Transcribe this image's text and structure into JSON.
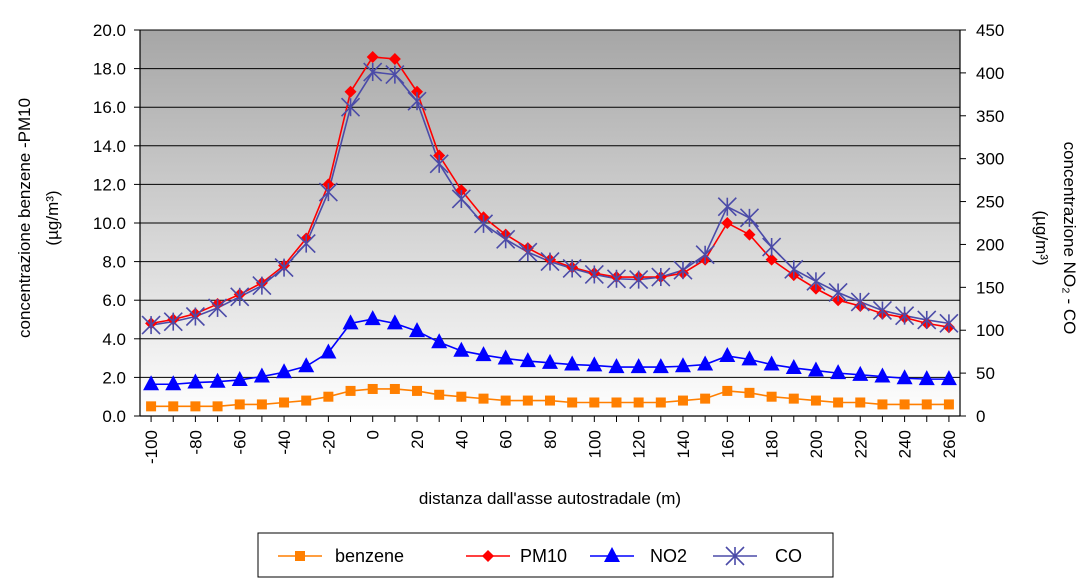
{
  "chart_data": {
    "type": "line",
    "x": [
      -100,
      -90,
      -80,
      -70,
      -60,
      -50,
      -40,
      -30,
      -20,
      -10,
      0,
      10,
      20,
      30,
      40,
      50,
      60,
      70,
      80,
      90,
      100,
      110,
      120,
      130,
      140,
      150,
      160,
      170,
      180,
      190,
      200,
      210,
      220,
      230,
      240,
      250,
      260
    ],
    "x_tick_labels": [
      "-100",
      "-80",
      "-60",
      "-40",
      "-20",
      "0",
      "20",
      "40",
      "60",
      "80",
      "100",
      "120",
      "140",
      "160",
      "180",
      "200",
      "220",
      "240",
      "260"
    ],
    "xlabel": "distanza dall'asse autostradale (m)",
    "ylabel_left": "concentrazione  benzene -PM10",
    "ylabel_left_unit": "(µg/m³)",
    "ylabel_right": "concentrazione NO₂ - CO",
    "ylabel_right_unit": "(µg/m³)",
    "y_left_ticks": [
      "0.0",
      "2.0",
      "4.0",
      "6.0",
      "8.0",
      "10.0",
      "12.0",
      "14.0",
      "16.0",
      "18.0",
      "20.0"
    ],
    "y_right_ticks": [
      "0",
      "50",
      "100",
      "150",
      "200",
      "250",
      "300",
      "350",
      "400",
      "450"
    ],
    "ylim_left": [
      0,
      20
    ],
    "ylim_right": [
      0,
      450
    ],
    "background": "vertical gradient grey (dark top to white bottom)",
    "grid": "horizontal",
    "legend_position": "bottom",
    "series": [
      {
        "name": "benzene",
        "axis": "left",
        "color": "#FF7F00",
        "marker": "square",
        "values": [
          0.5,
          0.5,
          0.5,
          0.5,
          0.6,
          0.6,
          0.7,
          0.8,
          1.0,
          1.3,
          1.4,
          1.4,
          1.3,
          1.1,
          1.0,
          0.9,
          0.8,
          0.8,
          0.8,
          0.7,
          0.7,
          0.7,
          0.7,
          0.7,
          0.8,
          0.9,
          1.3,
          1.2,
          1.0,
          0.9,
          0.8,
          0.7,
          0.7,
          0.6,
          0.6,
          0.6,
          0.6
        ]
      },
      {
        "name": "PM10",
        "axis": "left",
        "color": "#FF0000",
        "marker": "diamond",
        "values": [
          4.8,
          5.0,
          5.3,
          5.8,
          6.3,
          6.9,
          7.8,
          9.2,
          12.0,
          16.8,
          18.6,
          18.5,
          16.8,
          13.5,
          11.7,
          10.3,
          9.4,
          8.7,
          8.1,
          7.7,
          7.4,
          7.2,
          7.2,
          7.2,
          7.4,
          8.1,
          10.0,
          9.4,
          8.1,
          7.3,
          6.6,
          6.0,
          5.7,
          5.3,
          5.1,
          4.8,
          4.6
        ]
      },
      {
        "name": "NO2",
        "axis": "right",
        "color": "#0000FF",
        "marker": "triangle",
        "values": [
          37,
          37,
          39,
          40,
          42,
          46,
          51,
          58,
          74,
          108,
          113,
          108,
          99,
          86,
          76,
          71,
          67,
          64,
          62,
          60,
          59,
          57,
          57,
          57,
          58,
          60,
          70,
          66,
          60,
          56,
          53,
          50,
          48,
          46,
          44,
          43,
          43
        ]
      },
      {
        "name": "CO",
        "axis": "right",
        "color": "#4B4BA8",
        "marker": "asterisk",
        "values": [
          106,
          110,
          116,
          126,
          139,
          152,
          173,
          201,
          261,
          360,
          401,
          398,
          367,
          294,
          253,
          224,
          206,
          191,
          180,
          172,
          165,
          160,
          159,
          162,
          170,
          188,
          244,
          231,
          197,
          171,
          157,
          144,
          133,
          123,
          117,
          112,
          108
        ]
      }
    ]
  }
}
